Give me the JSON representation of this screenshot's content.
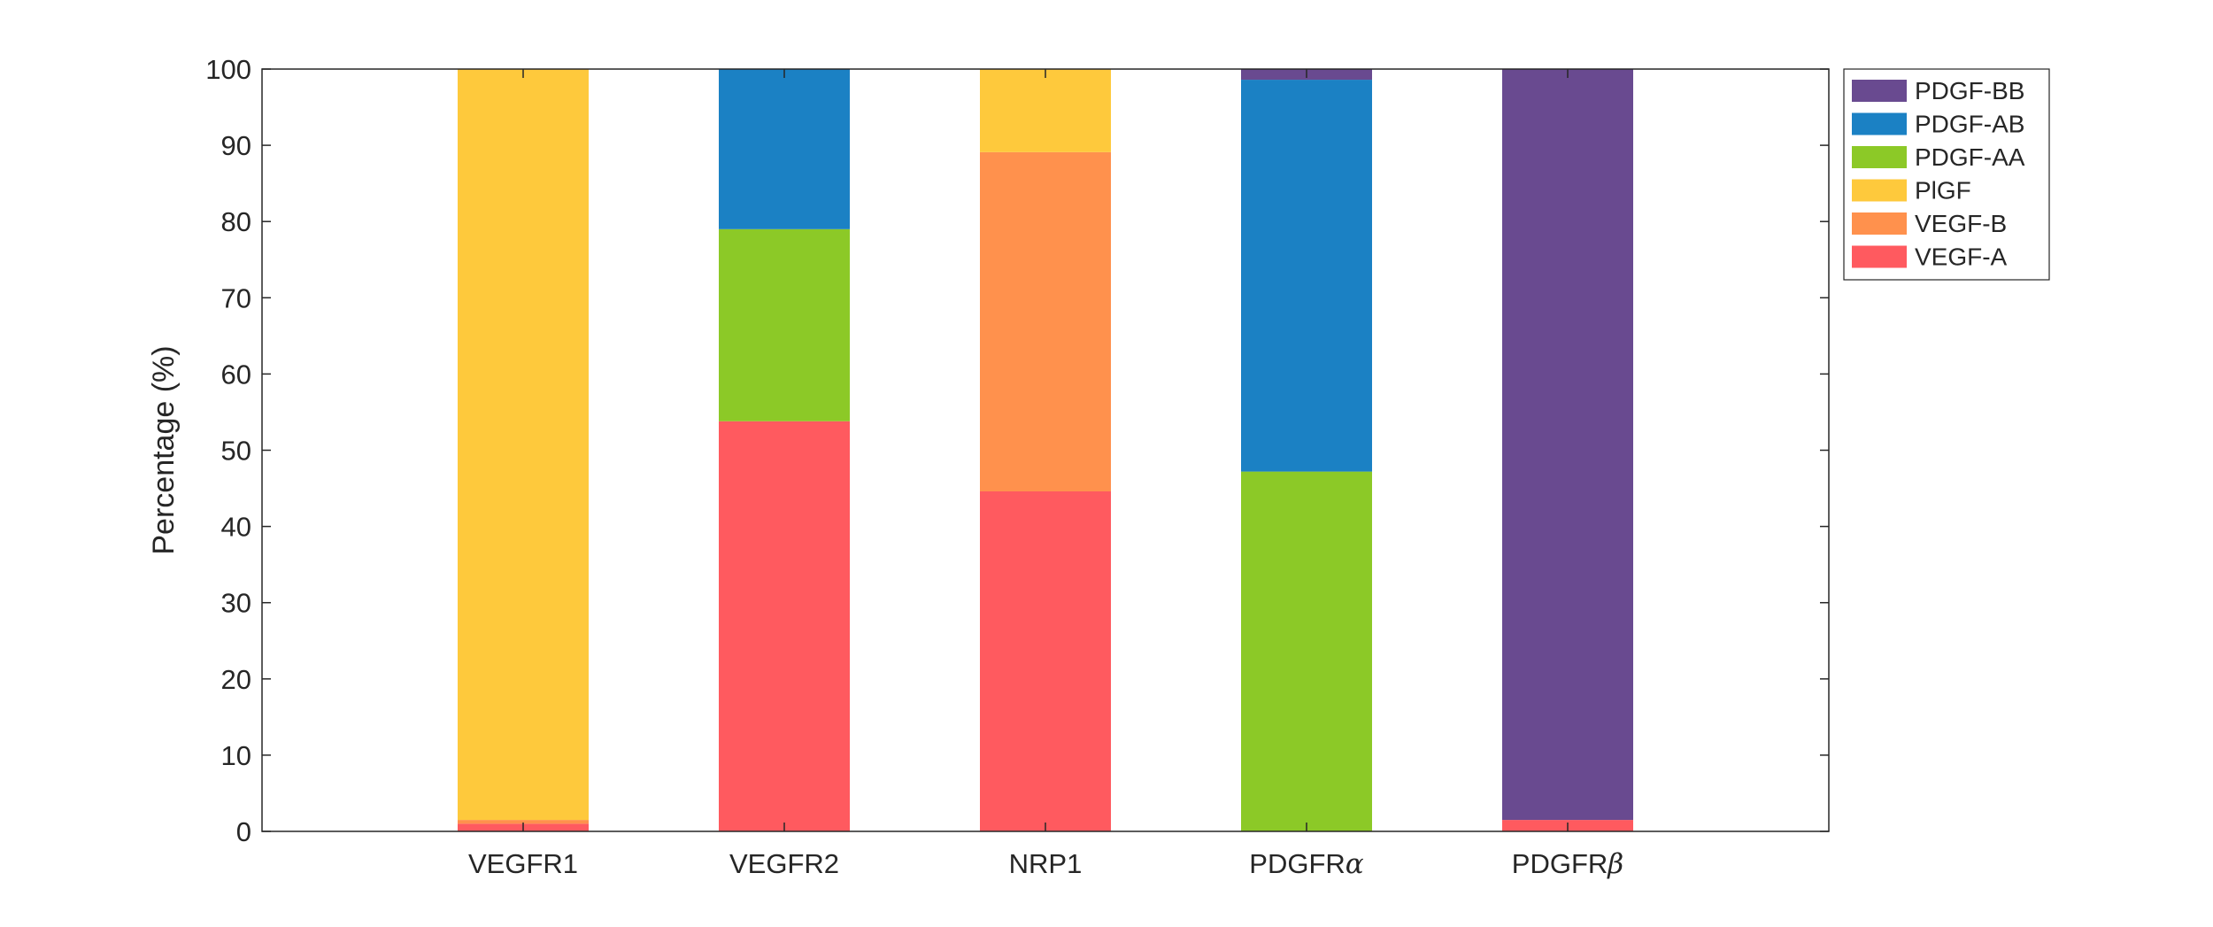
{
  "chart_data": {
    "type": "bar",
    "stacked": true,
    "title": "",
    "xlabel": "",
    "ylabel": "Percentage (%)",
    "ylim": [
      0,
      100
    ],
    "yticks": [
      0,
      10,
      20,
      30,
      40,
      50,
      60,
      70,
      80,
      90,
      100
    ],
    "grid": false,
    "legend_position": "outside-top-right",
    "categories": [
      {
        "base": "VEGFR1",
        "greek": ""
      },
      {
        "base": "VEGFR2",
        "greek": ""
      },
      {
        "base": "NRP1",
        "greek": ""
      },
      {
        "base": "PDGFR",
        "greek": "α"
      },
      {
        "base": "PDGFR",
        "greek": "β"
      }
    ],
    "series": [
      {
        "name": "VEGF-A",
        "color": "#FF5A5F",
        "values": [
          1.0,
          53.8,
          44.6,
          0.0,
          1.5
        ]
      },
      {
        "name": "VEGF-B",
        "color": "#FF914D",
        "values": [
          0.5,
          0.0,
          44.5,
          0.0,
          0.0
        ]
      },
      {
        "name": "PlGF",
        "color": "#FEC93C",
        "values": [
          98.5,
          0.0,
          10.9,
          0.0,
          0.0
        ]
      },
      {
        "name": "PDGF-AA",
        "color": "#8CC927",
        "values": [
          0.0,
          25.2,
          0.0,
          47.2,
          0.0
        ]
      },
      {
        "name": "PDGF-AB",
        "color": "#1B81C4",
        "values": [
          0.0,
          21.0,
          0.0,
          51.4,
          0.0
        ]
      },
      {
        "name": "PDGF-BB",
        "color": "#694A90",
        "values": [
          0.0,
          0.0,
          0.0,
          1.4,
          98.5
        ]
      }
    ],
    "legend_order": [
      "PDGF-BB",
      "PDGF-AB",
      "PDGF-AA",
      "PlGF",
      "VEGF-B",
      "VEGF-A"
    ]
  }
}
